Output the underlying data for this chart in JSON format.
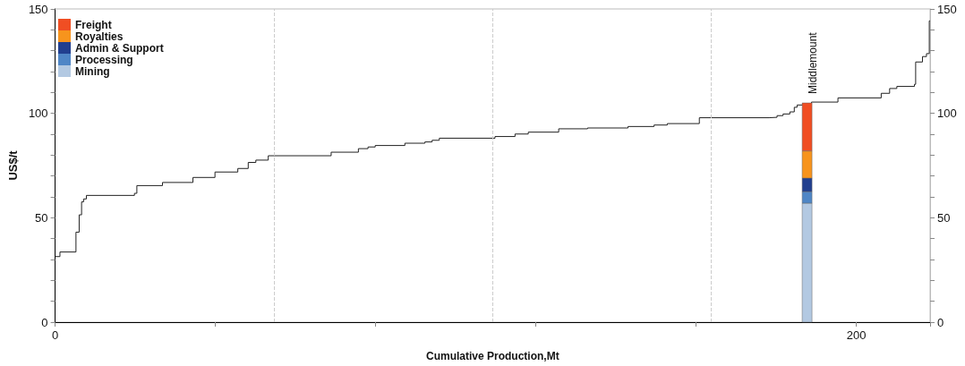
{
  "chart_data": {
    "type": "step",
    "xlabel": "Cumulative Production,Mt",
    "ylabel": "US$/t",
    "xlim": [
      0,
      218.4
    ],
    "xticks": [
      0,
      {
        "value": 40,
        "label": null
      },
      {
        "value": 80,
        "label": null
      },
      {
        "value": 120,
        "label": null
      },
      {
        "value": 160,
        "label": null
      },
      200
    ],
    "ylim": [
      0,
      150
    ],
    "yticks": [
      0,
      {
        "value": 10,
        "label": null
      },
      {
        "value": 20,
        "label": null
      },
      {
        "value": 30,
        "label": null
      },
      {
        "value": 40,
        "label": null
      },
      50,
      {
        "value": 60,
        "label": null
      },
      {
        "value": 70,
        "label": null
      },
      {
        "value": 80,
        "label": null
      },
      {
        "value": 90,
        "label": null
      },
      100,
      {
        "value": 110,
        "label": null
      },
      {
        "value": 120,
        "label": null
      },
      {
        "value": 130,
        "label": null
      },
      {
        "value": 140,
        "label": null
      },
      150
    ],
    "y2lim": [
      0,
      150
    ],
    "y2ticks": [
      0,
      {
        "value": 10,
        "label": null
      },
      {
        "value": 20,
        "label": null
      },
      {
        "value": 30,
        "label": null
      },
      {
        "value": 40,
        "label": null
      },
      50,
      {
        "value": 60,
        "label": null
      },
      {
        "value": 70,
        "label": null
      },
      {
        "value": 80,
        "label": null
      },
      {
        "value": 90,
        "label": null
      },
      100,
      {
        "value": 110,
        "label": null
      },
      {
        "value": 120,
        "label": null
      },
      {
        "value": 130,
        "label": null
      },
      {
        "value": 140,
        "label": null
      },
      150
    ],
    "grid": false,
    "legend": "top left",
    "stacked": true,
    "series": [
      {
        "color": "#222222",
        "x": [
          0,
          1.2,
          5.2,
          6.0,
          6.6,
          7.1,
          7.8,
          19.8,
          20.4,
          26.8,
          34.4,
          39.9,
          45.6,
          48.2,
          50.1,
          53.2,
          68.9,
          75.7,
          78.1,
          79.9,
          87.3,
          92.3,
          94.1,
          95.9,
          109.8,
          114.8,
          118.1,
          125.7,
          132.9,
          143,
          149.5,
          152.8,
          160.8,
          178.2,
          180.2,
          181.7,
          183.4,
          184.5,
          185.2,
          186.6,
          188.8,
          195.4,
          206.2,
          208.3,
          210.1,
          214.5,
          214.8,
          216.5,
          217.5,
          218.2,
          218.4
        ],
        "values": [
          31.4,
          33.6,
          43.1,
          51.4,
          57.6,
          59,
          60.7,
          61.7,
          65.4,
          66.9,
          69.3,
          71.9,
          73.6,
          76.5,
          77.6,
          79.7,
          81.4,
          83.1,
          83.9,
          84.6,
          85.7,
          86.3,
          87.1,
          88.1,
          88.9,
          90.1,
          91,
          92.6,
          93,
          93.7,
          94.4,
          95.1,
          97.9,
          98.1,
          98.9,
          99.7,
          100.7,
          102.9,
          104,
          104.7,
          105.4,
          107.4,
          109.6,
          111.9,
          112.9,
          113.9,
          124.6,
          127.2,
          128.6,
          144.3,
          144.3
        ]
      },
      {
        "type": "bar",
        "name": "Mining",
        "color": "#b3c9e2",
        "x": [
          187.7
        ],
        "values": [
          57
        ]
      },
      {
        "type": "bar",
        "name": "Processing",
        "color": "#4f86c6",
        "x": [
          187.7
        ],
        "values": [
          5.5
        ]
      },
      {
        "type": "bar",
        "name": "Admin & Support",
        "color": "#213f8f",
        "x": [
          187.7
        ],
        "values": [
          6.5
        ]
      },
      {
        "type": "bar",
        "name": "Royalties",
        "color": "#f7941d",
        "x": [
          187.7
        ],
        "values": [
          13
        ]
      },
      {
        "type": "bar",
        "name": "Freight",
        "color": "#f04e23",
        "x": [
          187.7
        ],
        "values": [
          23
        ]
      }
    ],
    "ref_lines": [
      {
        "axis": "x",
        "value": 54.6,
        "color": "#cccccc",
        "line_style": "dashed"
      },
      {
        "axis": "x",
        "value": 109.1,
        "color": "#cccccc",
        "line_style": "dashed"
      },
      {
        "axis": "x",
        "value": 163.7,
        "color": "#cccccc",
        "line_style": "dashed"
      }
    ],
    "annotations": [
      {
        "text": "Middlemount",
        "x": 187.7,
        "y": 105
      }
    ]
  }
}
